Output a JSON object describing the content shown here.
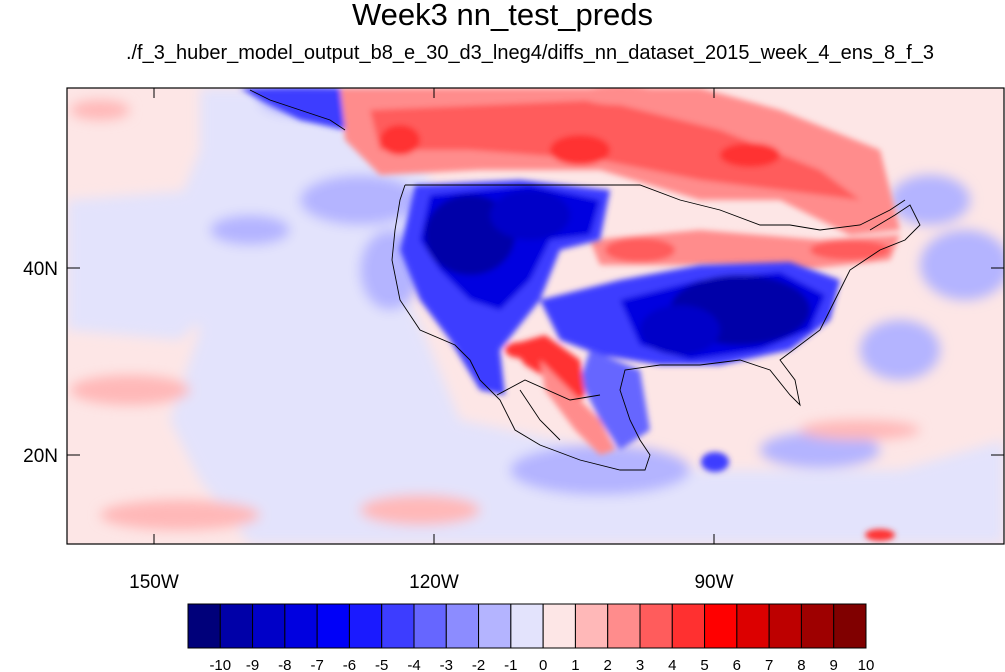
{
  "title": "Week3 nn_test_preds",
  "subtitle": "./f_3_huber_model_output_b8_e_30_d3_lneg4/diffs_nn_dataset_2015_week_4_ens_8_f_3",
  "map": {
    "lon_labels": [
      "150W",
      "120W",
      "90W"
    ],
    "lat_labels": [
      "40N",
      "20N"
    ],
    "background_anomaly": 0.5
  },
  "colorbar": {
    "labels": [
      "-10",
      "-9",
      "-8",
      "-7",
      "-6",
      "-5",
      "-4",
      "-3",
      "-2",
      "-1",
      "0",
      "1",
      "2",
      "3",
      "4",
      "5",
      "6",
      "7",
      "8",
      "9",
      "10"
    ],
    "colors": [
      "#00007a",
      "#0000a8",
      "#0000c8",
      "#0000e0",
      "#0000f8",
      "#1a1aff",
      "#3d3dff",
      "#6666ff",
      "#8c8cff",
      "#b4b4ff",
      "#e3e3fc",
      "#fde6e6",
      "#ffb8b8",
      "#ff8c8c",
      "#ff5c5c",
      "#ff3030",
      "#ff0000",
      "#dc0000",
      "#bd0000",
      "#9e0000",
      "#800000"
    ]
  }
}
